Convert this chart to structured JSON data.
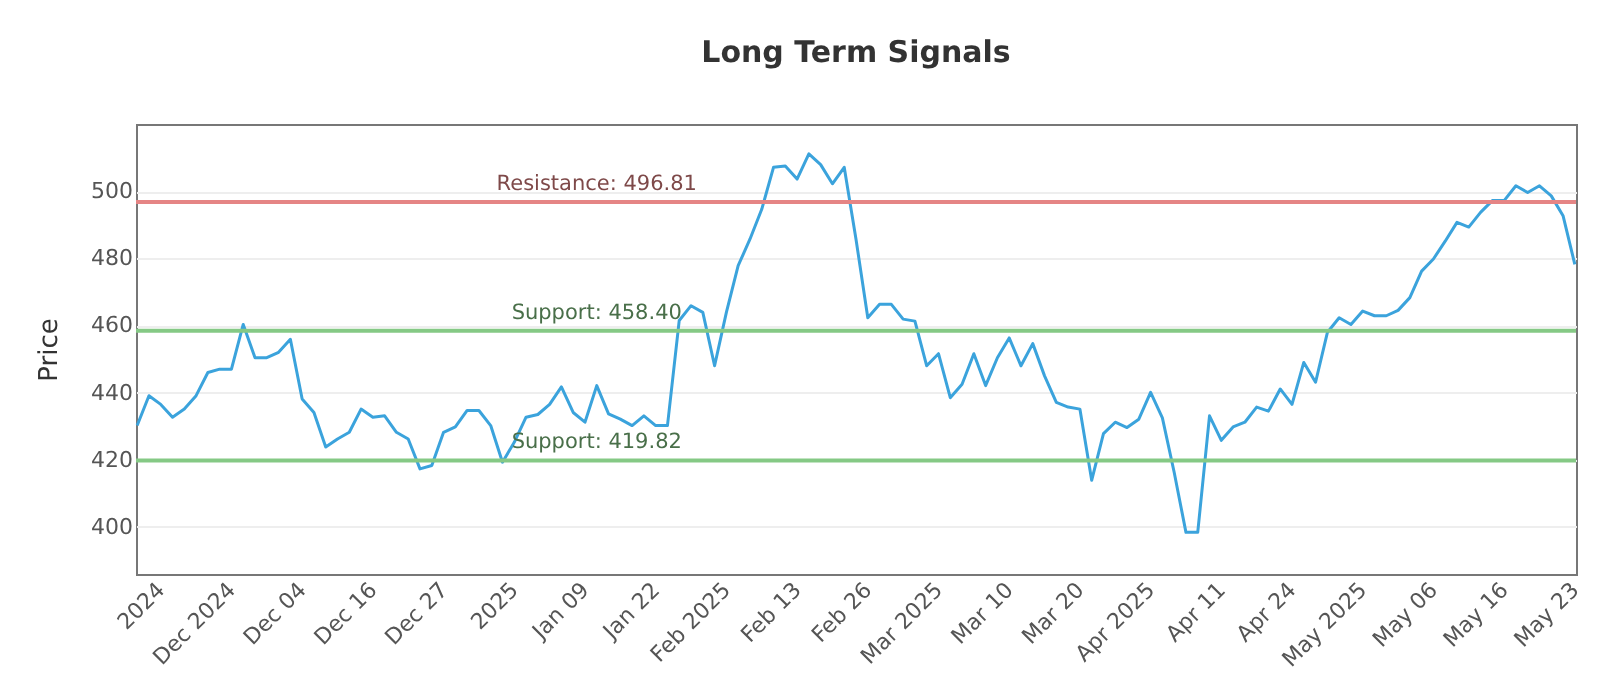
{
  "chart_data": {
    "type": "line",
    "title": "Long Term Signals",
    "ylabel": "Price",
    "categories": [
      null,
      null,
      "2024",
      null,
      null,
      null,
      null,
      null,
      "Dec 2024",
      null,
      null,
      null,
      null,
      null,
      "Dec 04",
      null,
      null,
      null,
      null,
      null,
      "Dec 16",
      null,
      null,
      null,
      null,
      null,
      "Dec 27",
      null,
      null,
      null,
      null,
      null,
      "2025",
      null,
      null,
      null,
      null,
      null,
      "Jan 09",
      null,
      null,
      null,
      null,
      null,
      "Jan 22",
      null,
      null,
      null,
      null,
      null,
      "Feb 2025",
      null,
      null,
      null,
      null,
      null,
      "Feb 13",
      null,
      null,
      null,
      null,
      null,
      "Feb 26",
      null,
      null,
      null,
      null,
      null,
      "Mar 2025",
      null,
      null,
      null,
      null,
      null,
      "Mar 10",
      null,
      null,
      null,
      null,
      null,
      "Mar 20",
      null,
      null,
      null,
      null,
      null,
      "Apr 2025",
      null,
      null,
      null,
      null,
      null,
      "Apr 11",
      null,
      null,
      null,
      null,
      null,
      "Apr 24",
      null,
      null,
      null,
      null,
      null,
      "May 2025",
      null,
      null,
      null,
      null,
      null,
      "May 06",
      null,
      null,
      null,
      null,
      null,
      "May 16",
      null,
      null,
      null,
      null,
      null,
      "May 23"
    ],
    "series": [
      {
        "color": "#3ba3dc",
        "values": [
          430.2,
          439.1,
          436.5,
          432.7,
          435.1,
          439.1,
          446.0,
          447.0,
          447.0,
          460.3,
          450.4,
          450.4,
          452.0,
          455.9,
          438.1,
          434.1,
          423.8,
          426.2,
          428.2,
          435.1,
          432.7,
          433.1,
          428.2,
          426.2,
          417.3,
          418.3,
          428.2,
          429.8,
          434.7,
          434.7,
          430.2,
          419.3,
          425.2,
          432.7,
          433.5,
          436.5,
          441.7,
          434.1,
          431.2,
          442.1,
          433.7,
          432.1,
          430.2,
          433.1,
          430.2,
          430.2,
          461.5,
          465.9,
          463.9,
          448.0,
          463.9,
          477.8,
          485.7,
          494.6,
          507.1,
          507.5,
          503.6,
          511.1,
          507.9,
          502.2,
          507.1,
          485.7,
          462.3,
          466.3,
          466.3,
          461.9,
          461.3,
          448.0,
          451.6,
          438.5,
          442.5,
          451.6,
          442.1,
          450.4,
          456.3,
          448.0,
          454.6,
          445.0,
          437.1,
          435.7,
          435.1,
          413.9,
          427.8,
          431.2,
          429.6,
          432.1,
          440.1,
          432.5,
          416.3,
          398.4,
          398.4,
          433.1,
          425.8,
          429.8,
          431.2,
          435.7,
          434.5,
          441.1,
          436.5,
          449.0,
          443.1,
          457.9,
          462.3,
          460.3,
          464.3,
          462.9,
          462.9,
          464.5,
          468.3,
          476.2,
          479.8,
          485.1,
          490.7,
          489.3,
          493.7,
          497.2,
          497.2,
          501.6,
          499.6,
          501.6,
          498.6,
          492.7,
          478.2
        ]
      }
    ],
    "ylim": [
      386,
      520
    ],
    "yticks": [
      400,
      420,
      440,
      460,
      480,
      500
    ],
    "grid": "y",
    "marker": "none",
    "line_style": "solid",
    "ref_lines": [
      {
        "axis": "y",
        "value": 496.81,
        "label": "Resistance: 496.81",
        "color": "#e58585"
      },
      {
        "axis": "y",
        "value": 458.4,
        "label": "Support: 458.40",
        "color": "#85c985"
      },
      {
        "axis": "y",
        "value": 419.82,
        "label": "Support: 419.82",
        "color": "#85c985"
      }
    ]
  }
}
